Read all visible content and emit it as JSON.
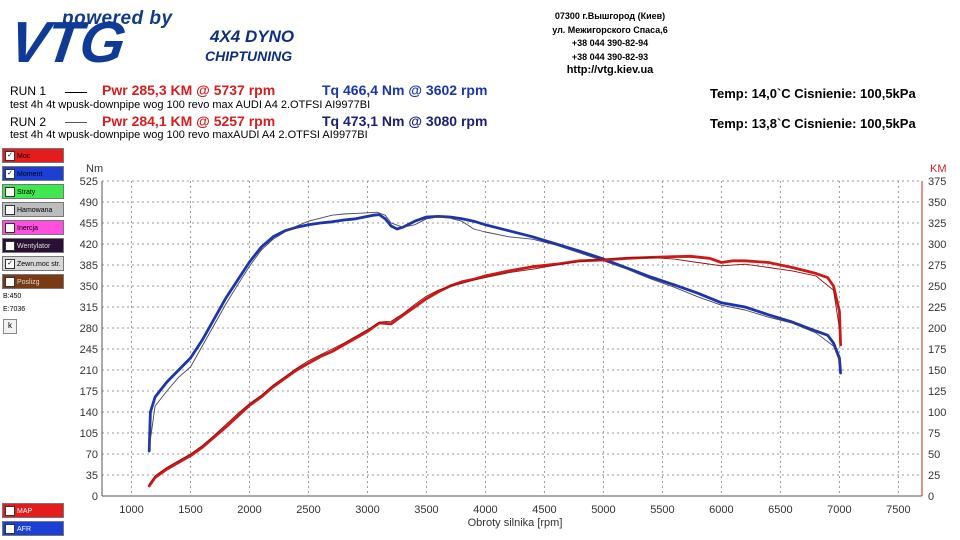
{
  "brand": {
    "powered_by": "powered by",
    "name": "VTG",
    "line1": "4X4 DYNO",
    "line2": "CHIPTUNING"
  },
  "contact": {
    "address": "07300 г.Вышгород (Киев)",
    "street": "ул. Межигорского Спаса,6",
    "phone1": "+38 044 390-82-94",
    "phone2": "+38 044 390-82-93",
    "url": "http://vtg.kiev.ua"
  },
  "runs": [
    {
      "label": "RUN 1",
      "power": "Pwr  285,3 KM @ 5737 rpm",
      "torque": "Tq 466,4 Nm @ 3602 rpm",
      "desc": "test  4h 4t  wpusk-downpipe wog 100 revo max AUDI A4 2.OTFSI AI9977BI",
      "conditions": "Temp: 14,0`C   Cisnienie: 100,5kPa"
    },
    {
      "label": "RUN 2",
      "power": "Pwr  284,1 KM @ 5257 rpm",
      "torque": "Tq 473,1 Nm @ 3080 rpm",
      "desc": "test  4h 4t  wpusk-downpipe wog 100 revo maxAUDI A4 2.OTFSI AI9977BI",
      "conditions": "Temp: 13,8`C   Cisnienie: 100,5kPa"
    }
  ],
  "panel": {
    "items": [
      {
        "label": "Moc",
        "checked": true,
        "color": "#e41c1c"
      },
      {
        "label": "Moment",
        "checked": true,
        "color": "#1c3fd6"
      },
      {
        "label": "Straty",
        "checked": false,
        "color": "#3fe84f"
      },
      {
        "label": "Hamowana",
        "checked": false,
        "color": "#bdbdbd"
      },
      {
        "label": "Inercja",
        "checked": false,
        "color": "#ff4fe0"
      },
      {
        "label": "Wentylator",
        "checked": false,
        "color": "#2a1035"
      },
      {
        "label": "Zewn.moc str.",
        "checked": true,
        "color": "#d8d8d8"
      },
      {
        "label": "Poslizg",
        "checked": false,
        "color": "#7a3a12"
      }
    ],
    "b_value": "B:450",
    "e_value": "E:7036",
    "button_label": "k",
    "bottom_items": [
      {
        "label": "MAP",
        "checked": false,
        "color": "#e41c1c"
      },
      {
        "label": "AFR",
        "checked": false,
        "color": "#1c3fd6"
      }
    ]
  },
  "chart_data": {
    "type": "line",
    "xlabel": "Obroty silnika [rpm]",
    "ylabel_left": "Nm",
    "ylabel_right": "KM",
    "xlim": [
      750,
      7700
    ],
    "ylim_left": [
      0,
      525
    ],
    "ylim_right": [
      0,
      375
    ],
    "x_ticks": [
      1000,
      1500,
      2000,
      2500,
      3000,
      3500,
      4000,
      4500,
      5000,
      5500,
      6000,
      6500,
      7000,
      7500
    ],
    "y_left_ticks": [
      0,
      35,
      70,
      105,
      140,
      175,
      210,
      245,
      280,
      315,
      350,
      385,
      420,
      455,
      490,
      525
    ],
    "y_right_ticks": [
      0,
      25,
      50,
      75,
      100,
      125,
      150,
      175,
      200,
      225,
      250,
      275,
      300,
      325,
      350,
      375
    ],
    "grid": true,
    "series": [
      {
        "name": "Tq RUN 1",
        "axis": "left",
        "color": "#1c35a8",
        "width": 2.8,
        "x": [
          1150,
          1160,
          1200,
          1300,
          1400,
          1500,
          1600,
          1700,
          1800,
          1900,
          2000,
          2100,
          2200,
          2300,
          2400,
          2500,
          2600,
          2700,
          2800,
          2900,
          3000,
          3050,
          3100,
          3150,
          3200,
          3250,
          3300,
          3400,
          3500,
          3600,
          3700,
          3800,
          3900,
          4000,
          4200,
          4400,
          4600,
          4800,
          5000,
          5200,
          5400,
          5600,
          5800,
          6000,
          6200,
          6400,
          6600,
          6800,
          6900,
          6950,
          7000,
          7010
        ],
        "y": [
          75,
          140,
          165,
          190,
          210,
          230,
          260,
          295,
          330,
          360,
          390,
          415,
          432,
          442,
          448,
          452,
          455,
          457,
          460,
          462,
          466,
          468,
          469,
          462,
          450,
          445,
          448,
          458,
          465,
          466,
          465,
          462,
          458,
          452,
          442,
          432,
          420,
          408,
          395,
          380,
          365,
          352,
          338,
          322,
          315,
          302,
          290,
          275,
          268,
          255,
          230,
          205
        ]
      },
      {
        "name": "Tq RUN 2",
        "axis": "left",
        "color": "#444466",
        "width": 0.9,
        "x": [
          1150,
          1200,
          1300,
          1400,
          1500,
          1600,
          1700,
          1800,
          1900,
          2000,
          2100,
          2200,
          2300,
          2400,
          2500,
          2600,
          2700,
          2800,
          2900,
          3000,
          3080,
          3150,
          3200,
          3300,
          3400,
          3500,
          3600,
          3700,
          3800,
          3900,
          4000,
          4200,
          4400,
          4600,
          4800,
          5000,
          5200,
          5400,
          5600,
          5800,
          6000,
          6200,
          6400,
          6600,
          6800,
          6950,
          7000
        ],
        "y": [
          80,
          150,
          175,
          198,
          215,
          250,
          285,
          320,
          352,
          383,
          410,
          428,
          440,
          450,
          458,
          463,
          468,
          470,
          471,
          472,
          473,
          468,
          455,
          448,
          452,
          462,
          465,
          463,
          458,
          445,
          440,
          432,
          428,
          418,
          405,
          392,
          378,
          362,
          348,
          332,
          318,
          310,
          298,
          288,
          272,
          250,
          225
        ]
      },
      {
        "name": "Pwr RUN 1",
        "axis": "right",
        "color": "#cc1a1a",
        "width": 2.8,
        "x": [
          1150,
          1200,
          1300,
          1400,
          1500,
          1600,
          1700,
          1800,
          1900,
          2000,
          2100,
          2200,
          2300,
          2400,
          2500,
          2600,
          2700,
          2800,
          2900,
          3000,
          3100,
          3200,
          3300,
          3400,
          3500,
          3600,
          3700,
          3800,
          3900,
          4000,
          4200,
          4400,
          4600,
          4800,
          5000,
          5200,
          5400,
          5600,
          5737,
          5900,
          6000,
          6100,
          6200,
          6400,
          6600,
          6800,
          6900,
          6950,
          7000,
          7010
        ],
        "y": [
          12,
          22,
          32,
          40,
          48,
          58,
          70,
          82,
          95,
          108,
          118,
          130,
          140,
          150,
          158,
          166,
          172,
          180,
          188,
          196,
          206,
          205,
          215,
          225,
          235,
          243,
          250,
          255,
          258,
          262,
          268,
          273,
          276,
          280,
          281,
          283,
          284,
          285,
          285.3,
          283,
          278,
          280,
          280,
          278,
          272,
          265,
          260,
          250,
          220,
          180
        ]
      },
      {
        "name": "Pwr RUN 2",
        "axis": "right",
        "color": "#8b1010",
        "width": 0.9,
        "x": [
          1150,
          1200,
          1300,
          1400,
          1500,
          1600,
          1700,
          1800,
          1900,
          2000,
          2100,
          2200,
          2300,
          2400,
          2500,
          2600,
          2700,
          2800,
          2900,
          3000,
          3100,
          3200,
          3300,
          3400,
          3500,
          3600,
          3700,
          3800,
          3900,
          4000,
          4200,
          4400,
          4600,
          4800,
          5000,
          5257,
          5400,
          5600,
          5800,
          6000,
          6200,
          6400,
          6600,
          6800,
          6950,
          7000
        ],
        "y": [
          14,
          24,
          34,
          42,
          50,
          60,
          72,
          85,
          98,
          110,
          120,
          132,
          142,
          152,
          161,
          168,
          175,
          182,
          190,
          198,
          207,
          208,
          217,
          228,
          238,
          245,
          250,
          253,
          257,
          260,
          266,
          270,
          275,
          279,
          282,
          284.1,
          284,
          282,
          278,
          274,
          276,
          272,
          268,
          262,
          245,
          200
        ]
      }
    ]
  }
}
